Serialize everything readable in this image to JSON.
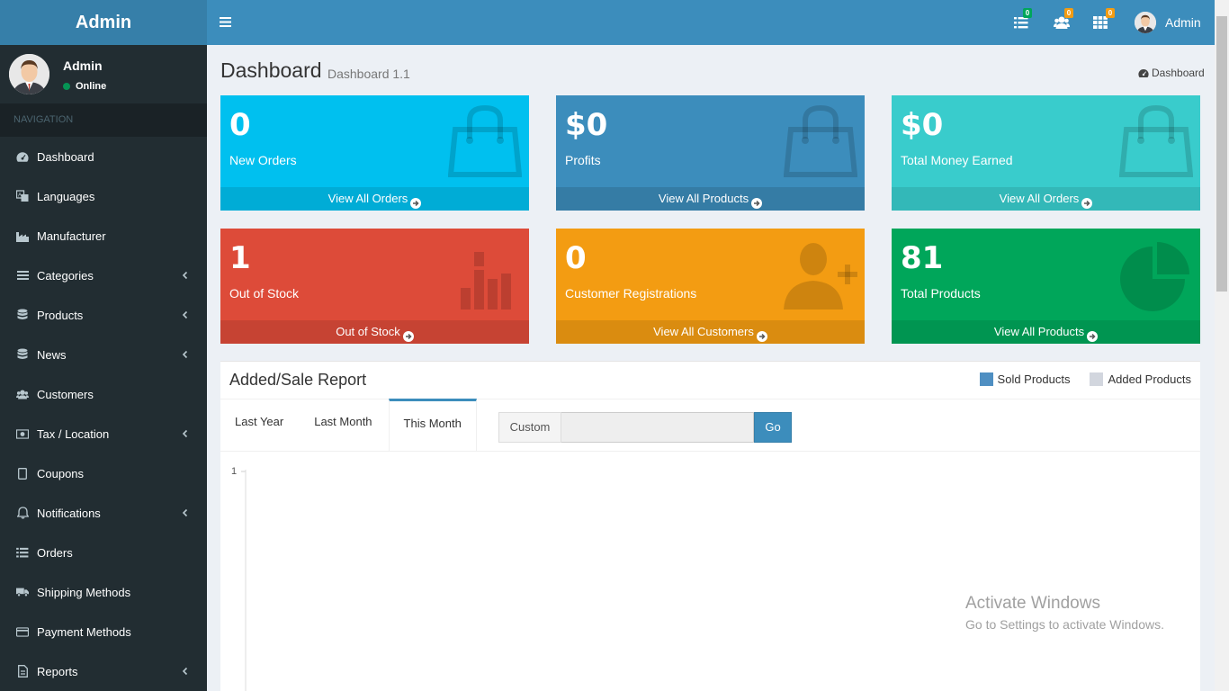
{
  "app": {
    "logo": "Admin"
  },
  "user": {
    "name": "Admin",
    "status": "Online"
  },
  "nav": {
    "header": "NAVIGATION",
    "items": [
      {
        "label": "Dashboard",
        "icon": "dashboard-icon",
        "expandable": false
      },
      {
        "label": "Languages",
        "icon": "language-icon",
        "expandable": false
      },
      {
        "label": "Manufacturer",
        "icon": "industry-icon",
        "expandable": false
      },
      {
        "label": "Categories",
        "icon": "bars-icon",
        "expandable": true
      },
      {
        "label": "Products",
        "icon": "database-icon",
        "expandable": true
      },
      {
        "label": "News",
        "icon": "database-icon",
        "expandable": true
      },
      {
        "label": "Customers",
        "icon": "users-icon",
        "expandable": false
      },
      {
        "label": "Tax / Location",
        "icon": "money-icon",
        "expandable": true
      },
      {
        "label": "Coupons",
        "icon": "tablet-icon",
        "expandable": false
      },
      {
        "label": "Notifications",
        "icon": "bell-icon",
        "expandable": true
      },
      {
        "label": "Orders",
        "icon": "list-icon",
        "expandable": false
      },
      {
        "label": "Shipping Methods",
        "icon": "truck-icon",
        "expandable": false
      },
      {
        "label": "Payment Methods",
        "icon": "credit-card-icon",
        "expandable": false
      },
      {
        "label": "Reports",
        "icon": "file-icon",
        "expandable": true
      }
    ]
  },
  "topbar": {
    "orders_badge": "0",
    "customers_badge": "0",
    "products_badge": "0",
    "user_name": "Admin"
  },
  "page": {
    "title": "Dashboard",
    "subtitle": "Dashboard 1.1",
    "breadcrumb": "Dashboard"
  },
  "boxes": [
    {
      "value": "0",
      "label": "New Orders",
      "link": "View All Orders",
      "color": "#00c0ef",
      "footer_color": "#00acd6",
      "icon": "shopping-bag-icon"
    },
    {
      "value": "$0",
      "label": "Profits",
      "link": "View All Products",
      "color": "#3c8dbc",
      "footer_color": "#357ca5",
      "icon": "shopping-bag-icon"
    },
    {
      "value": "$0",
      "label": "Total Money Earned",
      "link": "View All Orders",
      "color": "#39cccc",
      "footer_color": "#33b8b8",
      "icon": "shopping-bag-icon"
    },
    {
      "value": "1",
      "label": "Out of Stock",
      "link": "Out of Stock",
      "color": "#dd4b39",
      "footer_color": "#c64333",
      "icon": "bar-chart-icon"
    },
    {
      "value": "0",
      "label": "Customer Registrations",
      "link": "View All Customers",
      "color": "#f39c12",
      "footer_color": "#da8c10",
      "icon": "user-plus-icon"
    },
    {
      "value": "81",
      "label": "Total Products",
      "link": "View All Products",
      "color": "#00a65a",
      "footer_color": "#009551",
      "icon": "pie-chart-icon"
    }
  ],
  "report": {
    "title": "Added/Sale Report",
    "legend": [
      {
        "label": "Sold Products",
        "color": "#3c8dbc"
      },
      {
        "label": "Added Products",
        "color": "#d2d6de"
      }
    ],
    "tabs": [
      "Last Year",
      "Last Month",
      "This Month"
    ],
    "active_tab": "This Month",
    "custom_label": "Custom",
    "custom_value": "",
    "go_label": "Go"
  },
  "chart_data": {
    "type": "line",
    "title": "",
    "xlabel": "",
    "ylabel": "",
    "y_tick_labels": [
      "1"
    ],
    "series": []
  },
  "watermark": {
    "line1": "Activate Windows",
    "line2": "Go to Settings to activate Windows."
  }
}
